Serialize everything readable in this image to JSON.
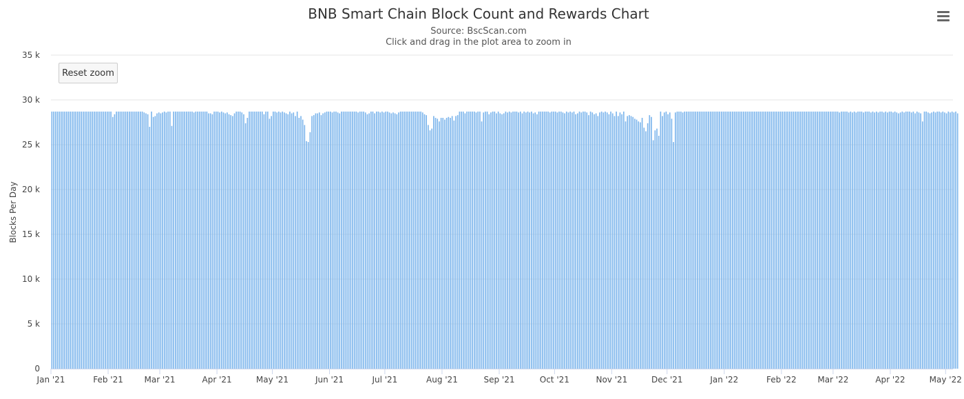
{
  "page": {
    "reset_zoom_label": "Reset zoom",
    "menu_icon": "hamburger-menu-icon"
  },
  "chart_data": {
    "type": "bar",
    "title": "BNB Smart Chain Block Count and Rewards Chart",
    "subtitle_lines": [
      "Source: BscScan.com",
      "Click and drag in the plot area to zoom in"
    ],
    "ylabel": "Blocks Per Day",
    "xlabel": "",
    "ylim": [
      0,
      35000
    ],
    "y_ticks": [
      0,
      5000,
      10000,
      15000,
      20000,
      25000,
      30000,
      35000
    ],
    "y_tick_labels": [
      "0",
      "5 k",
      "10 k",
      "15 k",
      "20 k",
      "25 k",
      "30 k",
      "35 k"
    ],
    "x_start": "2021-01-01",
    "x_end": "2022-05-05",
    "x_tick_labels": [
      {
        "date": "2021-01-01",
        "label": "Jan '21"
      },
      {
        "date": "2021-02-01",
        "label": "Feb '21"
      },
      {
        "date": "2021-03-01",
        "label": "Mar '21"
      },
      {
        "date": "2021-04-01",
        "label": "Apr '21"
      },
      {
        "date": "2021-05-01",
        "label": "May '21"
      },
      {
        "date": "2021-06-01",
        "label": "Jun '21"
      },
      {
        "date": "2021-07-01",
        "label": "Jul '21"
      },
      {
        "date": "2021-08-01",
        "label": "Aug '21"
      },
      {
        "date": "2021-09-01",
        "label": "Sep '21"
      },
      {
        "date": "2021-10-01",
        "label": "Oct '21"
      },
      {
        "date": "2021-11-01",
        "label": "Nov '21"
      },
      {
        "date": "2021-12-01",
        "label": "Dec '21"
      },
      {
        "date": "2022-01-01",
        "label": "Jan '22"
      },
      {
        "date": "2022-02-01",
        "label": "Feb '22"
      },
      {
        "date": "2022-03-01",
        "label": "Mar '22"
      },
      {
        "date": "2022-04-01",
        "label": "Apr '22"
      },
      {
        "date": "2022-05-01",
        "label": "May '22"
      }
    ],
    "grid": true,
    "legend": "none",
    "bar_color": "#7cb5ec",
    "series": [
      {
        "values": [
          28700,
          28700,
          28700,
          28700,
          28700,
          28700,
          28700,
          28700,
          28700,
          28700,
          28700,
          28700,
          28700,
          28700,
          28700,
          28700,
          28700,
          28700,
          28700,
          28700,
          28700,
          28700,
          28700,
          28700,
          28700,
          28700,
          28700,
          28700,
          28700,
          28700,
          28700,
          28700,
          28700,
          28100,
          28400,
          28700,
          28700,
          28700,
          28700,
          28700,
          28700,
          28700,
          28700,
          28700,
          28700,
          28700,
          28700,
          28700,
          28700,
          28700,
          28600,
          28500,
          28400,
          27000,
          28700,
          28100,
          28200,
          28500,
          28600,
          28500,
          28600,
          28700,
          28600,
          28700,
          28700,
          27100,
          28700,
          28700,
          28700,
          28700,
          28700,
          28700,
          28700,
          28700,
          28700,
          28700,
          28700,
          28600,
          28700,
          28700,
          28700,
          28700,
          28700,
          28700,
          28700,
          28500,
          28500,
          28400,
          28700,
          28700,
          28700,
          28600,
          28700,
          28600,
          28500,
          28600,
          28400,
          28300,
          28200,
          28500,
          28700,
          28700,
          28700,
          28600,
          28400,
          27400,
          28000,
          28700,
          28700,
          28700,
          28700,
          28700,
          28700,
          28700,
          28700,
          28400,
          28700,
          28700,
          27900,
          28200,
          28700,
          28700,
          28600,
          28700,
          28600,
          28700,
          28600,
          28500,
          28400,
          28700,
          28500,
          28600,
          28200,
          28700,
          28000,
          28200,
          27800,
          27200,
          25400,
          25300,
          26400,
          28200,
          28300,
          28500,
          28500,
          28600,
          28300,
          28500,
          28600,
          28700,
          28700,
          28700,
          28600,
          28700,
          28700,
          28600,
          28500,
          28700,
          28700,
          28700,
          28700,
          28700,
          28700,
          28700,
          28700,
          28700,
          28600,
          28700,
          28700,
          28700,
          28600,
          28400,
          28500,
          28700,
          28700,
          28500,
          28700,
          28700,
          28600,
          28700,
          28600,
          28700,
          28700,
          28600,
          28500,
          28600,
          28500,
          28400,
          28600,
          28700,
          28700,
          28700,
          28700,
          28700,
          28700,
          28700,
          28700,
          28700,
          28700,
          28700,
          28700,
          28600,
          28400,
          28300,
          27200,
          26600,
          26800,
          28200,
          28000,
          27900,
          27600,
          28000,
          28000,
          27800,
          28000,
          28100,
          28000,
          28200,
          27700,
          28200,
          28300,
          28700,
          28700,
          28700,
          28500,
          28700,
          28700,
          28700,
          28700,
          28700,
          28600,
          28700,
          28700,
          27600,
          28600,
          28700,
          28700,
          28400,
          28600,
          28700,
          28700,
          28500,
          28700,
          28500,
          28400,
          28500,
          28700,
          28600,
          28700,
          28600,
          28700,
          28700,
          28700,
          28600,
          28700,
          28500,
          28700,
          28600,
          28700,
          28600,
          28700,
          28500,
          28600,
          28400,
          28700,
          28700,
          28700,
          28700,
          28700,
          28700,
          28600,
          28700,
          28700,
          28700,
          28600,
          28700,
          28700,
          28600,
          28500,
          28700,
          28600,
          28700,
          28600,
          28700,
          28400,
          28500,
          28700,
          28600,
          28700,
          28700,
          28600,
          28300,
          28700,
          28600,
          28400,
          28500,
          28200,
          28600,
          28700,
          28600,
          28700,
          28600,
          28400,
          28700,
          28500,
          28200,
          28700,
          28200,
          28600,
          28400,
          28700,
          27600,
          28200,
          28300,
          28200,
          28100,
          27900,
          27800,
          27600,
          27500,
          28000,
          26900,
          26500,
          27400,
          28300,
          28100,
          25500,
          26600,
          26800,
          26000,
          28700,
          28200,
          28600,
          28700,
          28400,
          28600,
          27900,
          25300,
          28600,
          28700,
          28700,
          28700,
          28600,
          28700,
          28700,
          28700,
          28700,
          28700,
          28700,
          28700,
          28700,
          28700,
          28700,
          28700,
          28700,
          28700,
          28700,
          28700,
          28700,
          28700,
          28700,
          28700,
          28700,
          28700,
          28700,
          28700,
          28700,
          28700,
          28700,
          28700,
          28700,
          28700,
          28700,
          28700,
          28700,
          28700,
          28700,
          28700,
          28700,
          28700,
          28700,
          28700,
          28700,
          28700,
          28700,
          28700,
          28700,
          28700,
          28700,
          28700,
          28700,
          28700,
          28700,
          28700,
          28700,
          28700,
          28700,
          28700,
          28700,
          28700,
          28700,
          28700,
          28700,
          28700,
          28700,
          28700,
          28700,
          28700,
          28700,
          28700,
          28700,
          28700,
          28700,
          28700,
          28700,
          28700,
          28700,
          28700,
          28700,
          28700,
          28700,
          28700,
          28700,
          28700,
          28700,
          28700,
          28700,
          28600,
          28700,
          28700,
          28700,
          28700,
          28600,
          28700,
          28600,
          28700,
          28600,
          28700,
          28700,
          28700,
          28600,
          28700,
          28700,
          28700,
          28600,
          28700,
          28600,
          28700,
          28600,
          28700,
          28700,
          28600,
          28700,
          28600,
          28700,
          28700,
          28600,
          28700,
          28600,
          28500,
          28600,
          28700,
          28600,
          28700,
          28700,
          28700,
          28600,
          28700,
          28500,
          28700,
          28600,
          28500,
          27600,
          28700,
          28700,
          28600,
          28500,
          28600,
          28700,
          28600,
          28700,
          28700,
          28600,
          28700,
          28600,
          28500,
          28700,
          28600,
          28700,
          28600,
          28700,
          28500
        ]
      }
    ]
  }
}
